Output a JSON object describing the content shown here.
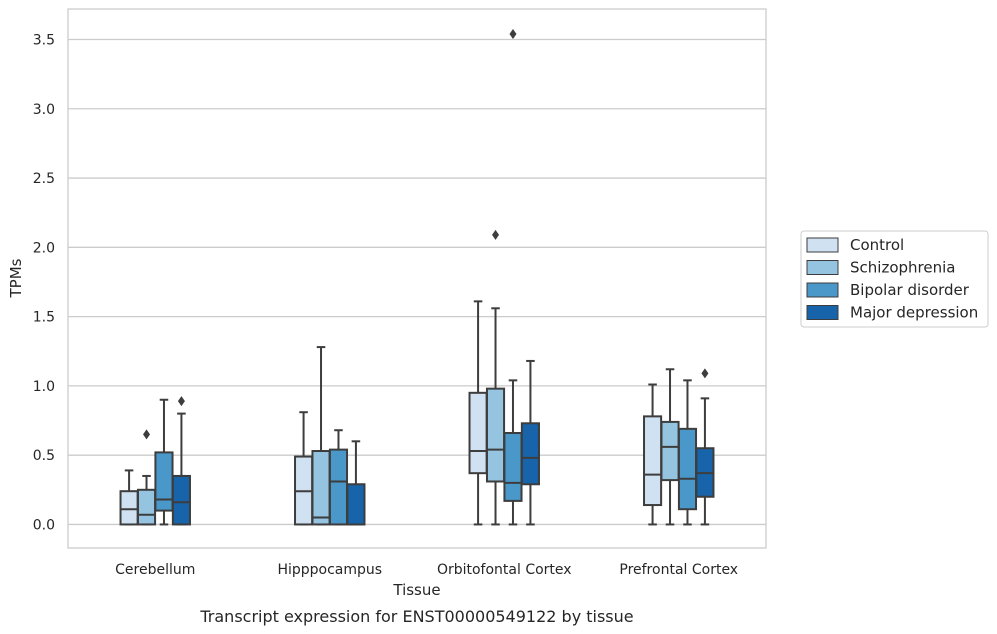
{
  "chart_data": {
    "type": "box",
    "xlabel": "Tissue",
    "ylabel": "TPMs",
    "caption": "Transcript expression for ENST00000549122 by tissue",
    "categories": [
      "Cerebellum",
      "Hipppocampus",
      "Orbitofontal Cortex",
      "Prefrontal Cortex"
    ],
    "ylim": [
      -0.17,
      3.72
    ],
    "yticks": [
      0.0,
      0.5,
      1.0,
      1.5,
      2.0,
      2.5,
      3.0,
      3.5
    ],
    "ytick_labels": [
      "0.0",
      "0.5",
      "1.0",
      "1.5",
      "2.0",
      "2.5",
      "3.0",
      "3.5"
    ],
    "grid": "horizontal",
    "legend_position": "right",
    "series": [
      {
        "name": "Control",
        "color": "#d0e1f2",
        "boxes": [
          {
            "whisker_low": 0.0,
            "q1": 0.0,
            "median": 0.11,
            "q3": 0.24,
            "whisker_high": 0.39,
            "outliers": []
          },
          {
            "whisker_low": 0.0,
            "q1": 0.0,
            "median": 0.24,
            "q3": 0.49,
            "whisker_high": 0.81,
            "outliers": []
          },
          {
            "whisker_low": 0.0,
            "q1": 0.37,
            "median": 0.53,
            "q3": 0.95,
            "whisker_high": 1.61,
            "outliers": []
          },
          {
            "whisker_low": 0.0,
            "q1": 0.14,
            "median": 0.36,
            "q3": 0.78,
            "whisker_high": 1.01,
            "outliers": []
          }
        ]
      },
      {
        "name": "Schizophrenia",
        "color": "#94c4df",
        "boxes": [
          {
            "whisker_low": 0.0,
            "q1": 0.0,
            "median": 0.07,
            "q3": 0.25,
            "whisker_high": 0.35,
            "outliers": [
              0.65
            ]
          },
          {
            "whisker_low": 0.0,
            "q1": 0.0,
            "median": 0.05,
            "q3": 0.53,
            "whisker_high": 1.28,
            "outliers": []
          },
          {
            "whisker_low": 0.0,
            "q1": 0.31,
            "median": 0.54,
            "q3": 0.98,
            "whisker_high": 1.56,
            "outliers": [
              2.09
            ]
          },
          {
            "whisker_low": 0.0,
            "q1": 0.32,
            "median": 0.56,
            "q3": 0.74,
            "whisker_high": 1.12,
            "outliers": []
          }
        ]
      },
      {
        "name": "Bipolar disorder",
        "color": "#4a98c9",
        "boxes": [
          {
            "whisker_low": 0.0,
            "q1": 0.1,
            "median": 0.18,
            "q3": 0.52,
            "whisker_high": 0.9,
            "outliers": []
          },
          {
            "whisker_low": 0.0,
            "q1": 0.0,
            "median": 0.31,
            "q3": 0.54,
            "whisker_high": 0.68,
            "outliers": []
          },
          {
            "whisker_low": 0.0,
            "q1": 0.17,
            "median": 0.3,
            "q3": 0.66,
            "whisker_high": 1.04,
            "outliers": [
              3.54
            ]
          },
          {
            "whisker_low": 0.0,
            "q1": 0.11,
            "median": 0.33,
            "q3": 0.69,
            "whisker_high": 1.04,
            "outliers": []
          }
        ]
      },
      {
        "name": "Major depression",
        "color": "#1764ab",
        "boxes": [
          {
            "whisker_low": 0.0,
            "q1": 0.0,
            "median": 0.16,
            "q3": 0.35,
            "whisker_high": 0.8,
            "outliers": [
              0.89
            ]
          },
          {
            "whisker_low": 0.0,
            "q1": 0.0,
            "median": 0.0,
            "q3": 0.29,
            "whisker_high": 0.6,
            "outliers": []
          },
          {
            "whisker_low": 0.0,
            "q1": 0.29,
            "median": 0.48,
            "q3": 0.73,
            "whisker_high": 1.18,
            "outliers": []
          },
          {
            "whisker_low": 0.0,
            "q1": 0.2,
            "median": 0.37,
            "q3": 0.55,
            "whisker_high": 0.91,
            "outliers": [
              1.09
            ]
          }
        ]
      }
    ]
  }
}
